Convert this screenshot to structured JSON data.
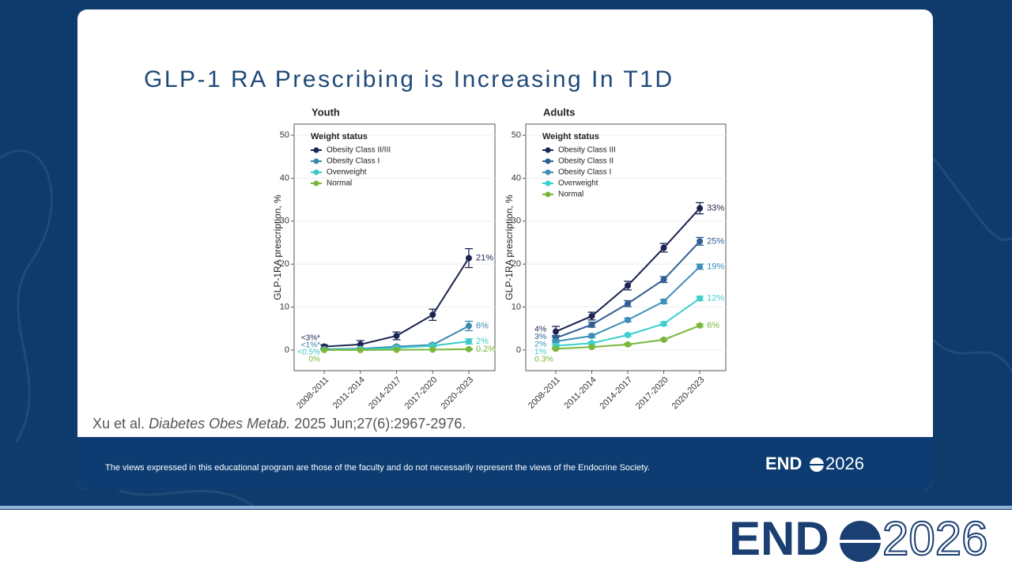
{
  "slide": {
    "title": "GLP-1 RA Prescribing is Increasing In T1D",
    "citation": {
      "authors": "Xu et al.",
      "journal": "Diabetes Obes Metab.",
      "details": "2025 Jun;27(6):2967-2976."
    },
    "disclaimer": "The views expressed in this educational program are those of the faculty and do not necessarily represent the views of the Endocrine Society.",
    "logo": {
      "left": "END",
      "right": "2026"
    }
  },
  "chart_data": [
    {
      "type": "line",
      "title": "Youth",
      "y_label": "GLP-1RA prescription, %",
      "legend_title": "Weight status",
      "grid": true,
      "categories": [
        "2008-2011",
        "2011-2014",
        "2014-2017",
        "2017-2020",
        "2020-2023"
      ],
      "ylim": [
        -4.8,
        52.6
      ],
      "yticks": [
        0,
        10,
        20,
        30,
        40,
        50
      ],
      "series": [
        {
          "name": "Obesity Class II/III",
          "color": "#1b2452",
          "values": [
            0.8,
            1.3,
            3.3,
            8.2,
            21.4
          ],
          "errors": [
            0.4,
            0.9,
            0.9,
            1.3,
            2.2
          ],
          "value_labels": [
            null,
            null,
            null,
            null,
            "21%"
          ],
          "note": "<3%*"
        },
        {
          "name": "Obesity Class I",
          "color": "#3b87ad",
          "values": [
            0.2,
            0.3,
            0.8,
            1.2,
            5.6
          ],
          "errors": [
            0.2,
            0.2,
            0.3,
            0.4,
            1.1
          ],
          "value_labels": [
            null,
            null,
            null,
            null,
            "6%"
          ],
          "note": "<1%*"
        },
        {
          "name": "Overweight",
          "color": "#3cc9c9",
          "values": [
            0.1,
            0.2,
            0.5,
            1.0,
            2.0
          ],
          "errors": [
            0.1,
            0.1,
            0.2,
            0.3,
            0.6
          ],
          "value_labels": [
            null,
            null,
            null,
            null,
            "2%"
          ],
          "note": "<0.5%"
        },
        {
          "name": "Normal",
          "color": "#79b83c",
          "values": [
            0,
            0,
            0.05,
            0.1,
            0.2
          ],
          "errors": [
            0,
            0,
            0.05,
            0.05,
            0.1
          ],
          "value_labels": [
            null,
            null,
            null,
            null,
            "0.2%"
          ],
          "note": "0%"
        }
      ]
    },
    {
      "type": "line",
      "title": "Adults",
      "y_label": "GLP-1RA prescription, %",
      "legend_title": "Weight status",
      "grid": true,
      "categories": [
        "2008-2011",
        "2011-2014",
        "2014-2017",
        "2017-2020",
        "2020-2023"
      ],
      "ylim": [
        -4.8,
        52.6
      ],
      "yticks": [
        0,
        10,
        20,
        30,
        40,
        50
      ],
      "series": [
        {
          "name": "Obesity Class III",
          "color": "#1b2452",
          "values": [
            4.3,
            7.9,
            15.0,
            23.8,
            33.0
          ],
          "errors": [
            1.2,
            0.9,
            1.0,
            1.0,
            1.3
          ],
          "value_labels": [
            "4%",
            null,
            null,
            null,
            "33%"
          ]
        },
        {
          "name": "Obesity Class II",
          "color": "#2e5e92",
          "values": [
            2.8,
            5.9,
            10.8,
            16.4,
            25.3
          ],
          "errors": [
            0.6,
            0.6,
            0.7,
            0.7,
            0.9
          ],
          "value_labels": [
            "3%",
            null,
            null,
            null,
            "25%"
          ]
        },
        {
          "name": "Obesity Class I",
          "color": "#3b8fb8",
          "values": [
            2.0,
            3.3,
            7.0,
            11.3,
            19.4
          ],
          "errors": [
            0.3,
            0.4,
            0.4,
            0.5,
            0.6
          ],
          "value_labels": [
            "2%",
            null,
            null,
            null,
            "19%"
          ]
        },
        {
          "name": "Overweight",
          "color": "#3ccfcf",
          "values": [
            1.0,
            1.6,
            3.5,
            6.1,
            12.0
          ],
          "errors": [
            0.3,
            0.3,
            0.3,
            0.4,
            0.5
          ],
          "value_labels": [
            "1%",
            null,
            null,
            null,
            "12%"
          ]
        },
        {
          "name": "Normal",
          "color": "#79b83c",
          "values": [
            0.3,
            0.7,
            1.3,
            2.4,
            5.7
          ],
          "errors": [
            0.1,
            0.1,
            0.2,
            0.2,
            0.3
          ],
          "value_labels": [
            "0.3%",
            null,
            null,
            null,
            "6%"
          ]
        }
      ]
    }
  ]
}
